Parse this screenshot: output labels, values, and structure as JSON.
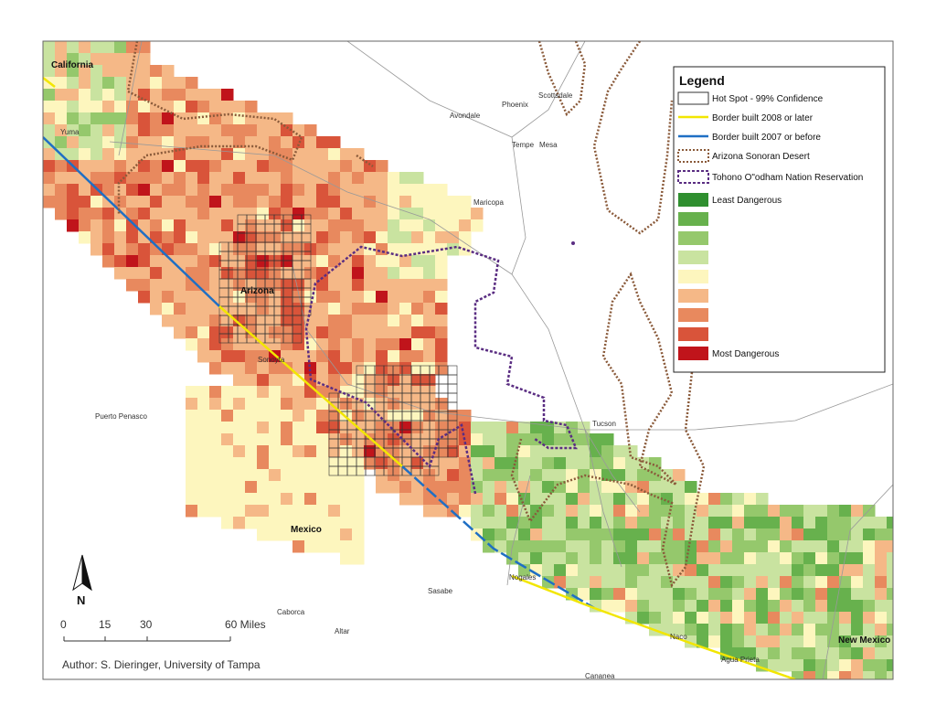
{
  "legend": {
    "title": "Legend",
    "items": [
      "Hot Spot - 99% Confidence",
      "Border built 2008 or later",
      "Border built 2007 or before",
      "Arizona Sonoran Desert",
      "Tohono O\"odham Nation Reservation",
      "Least Dangerous",
      "Most Dangerous"
    ]
  },
  "places": [
    "California",
    "Yuma",
    "Avondale",
    "Phoenix",
    "Scottsdale",
    "Tempe",
    "Mesa",
    "Maricopa",
    "Arizona",
    "Sonoyta",
    "Puerto Penasco",
    "Tucson",
    "Mexico",
    "Nogales",
    "Sasabe",
    "Caborca",
    "Altar",
    "Naco",
    "Agua Prieta",
    "New Mexico",
    "Cananea"
  ],
  "north": "N",
  "scale_bar": {
    "labels": [
      "0",
      "15",
      "30",
      "60 Miles"
    ]
  },
  "author": "Author: S. Dieringer, University of Tampa"
}
